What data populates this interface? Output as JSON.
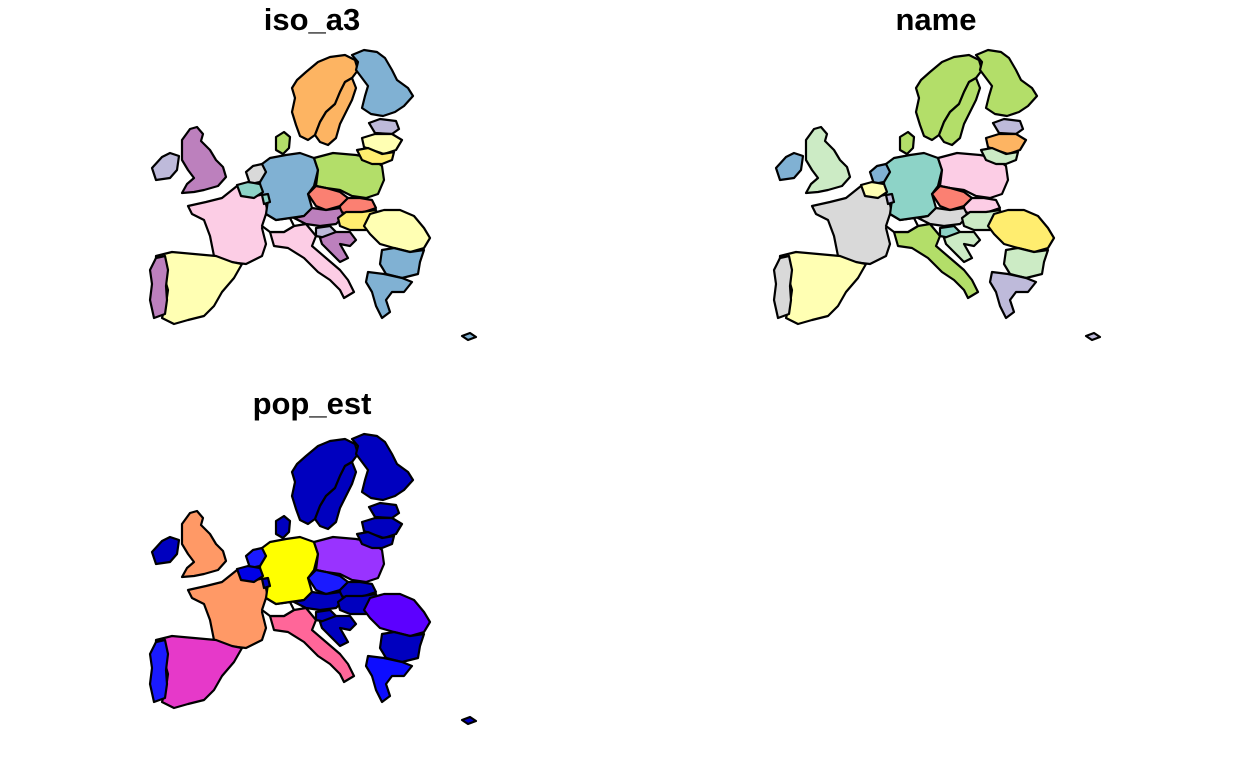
{
  "panels": [
    {
      "title": "iso_a3",
      "fills": {
        "norway": "#fdb462",
        "sweden": "#fdb462",
        "finland": "#80b1d3",
        "estonia": "#bebada",
        "latvia": "#ffffb3",
        "lithuania": "#ffed6f",
        "denmark": "#b3de69",
        "ireland": "#bebada",
        "uk": "#bc80bd",
        "netherlands": "#d9d9d9",
        "belgium": "#8dd3c7",
        "germany": "#80b1d3",
        "poland": "#b3de69",
        "czechia": "#fb8072",
        "slovakia": "#fb8072",
        "austria": "#bc80bd",
        "hungary": "#ffed6f",
        "switzerland": "#ffffff",
        "slovenia": "#bebada",
        "croatia": "#bc80bd",
        "romania": "#ffffb3",
        "bulgaria": "#80b1d3",
        "france": "#fccde5",
        "italy": "#fccde5",
        "spain": "#ffffb3",
        "portugal": "#bc80bd",
        "greece": "#80b1d3",
        "cyprus": "#80b1d3",
        "luxembourg": "#8dd3c7"
      }
    },
    {
      "title": "name",
      "fills": {
        "norway": "#b3de69",
        "sweden": "#b3de69",
        "finland": "#b3de69",
        "estonia": "#bebada",
        "latvia": "#fdb462",
        "lithuania": "#ccebc5",
        "denmark": "#b3de69",
        "ireland": "#80b1d3",
        "uk": "#ccebc5",
        "netherlands": "#80b1d3",
        "belgium": "#ffffb3",
        "germany": "#8dd3c7",
        "poland": "#fccde5",
        "czechia": "#fb8072",
        "slovakia": "#fccde5",
        "austria": "#d9d9d9",
        "hungary": "#ccebc5",
        "switzerland": "#ffffff",
        "slovenia": "#8dd3c7",
        "croatia": "#ccebc5",
        "romania": "#ffed6f",
        "bulgaria": "#ccebc5",
        "france": "#d9d9d9",
        "italy": "#b3de69",
        "spain": "#ffffb3",
        "portugal": "#d9d9d9",
        "greece": "#bebada",
        "cyprus": "#bebada",
        "luxembourg": "#bebada"
      }
    },
    {
      "title": "pop_est",
      "fills": {
        "norway": "#0000bf",
        "sweden": "#0000bf",
        "finland": "#0000bf",
        "estonia": "#0000bf",
        "latvia": "#0000bf",
        "lithuania": "#0000bf",
        "denmark": "#0000bf",
        "ireland": "#0000bf",
        "uk": "#ff9966",
        "netherlands": "#1a1aff",
        "belgium": "#0000e6",
        "germany": "#ffff00",
        "poland": "#9933ff",
        "czechia": "#1a1aff",
        "slovakia": "#0000bf",
        "austria": "#0000bf",
        "hungary": "#0000bf",
        "switzerland": "#ffffff",
        "slovenia": "#0000bf",
        "croatia": "#0000bf",
        "romania": "#5c00ff",
        "bulgaria": "#0000bf",
        "france": "#ff9966",
        "italy": "#ff6699",
        "spain": "#e639c9",
        "portugal": "#1a1aff",
        "greece": "#0d0dff",
        "cyprus": "#0000bf",
        "luxembourg": "#0000bf"
      }
    }
  ]
}
